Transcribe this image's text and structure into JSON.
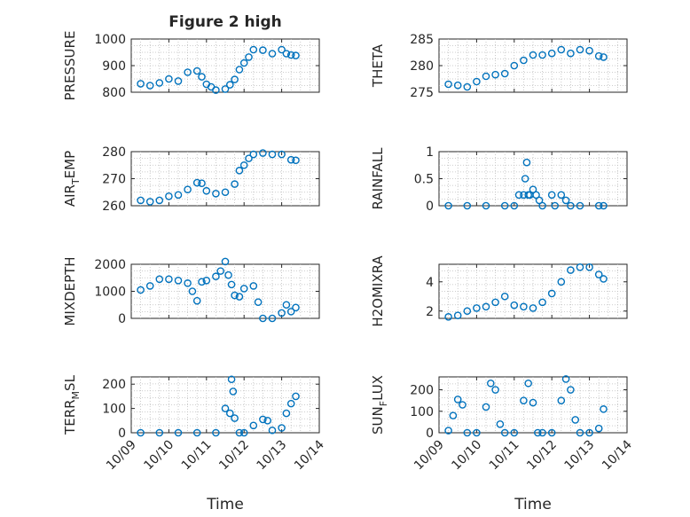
{
  "figure": {
    "title": "Figure 2 high",
    "time_label": "Time",
    "date_ticks": [
      "10/09",
      "10/10",
      "10/11",
      "10/12",
      "10/13",
      "10/14"
    ]
  },
  "colors": {
    "marker": "#0072bd",
    "axes": "#262626",
    "grid": "#bdbdbd"
  },
  "chart_data": [
    {
      "type": "scatter",
      "ylabel": "PRESSURE",
      "ylabel_sub": "",
      "ylim": [
        800,
        1000
      ],
      "yticks": [
        800,
        900,
        1000
      ],
      "ytick_labels": [
        "800",
        "900",
        "1000"
      ],
      "x": [
        "2023-10-09 06:00",
        "2023-10-09 12:00",
        "2023-10-09 18:00",
        "2023-10-10 00:00",
        "2023-10-10 06:00",
        "2023-10-10 12:00",
        "2023-10-10 18:00",
        "2023-10-10 21:00",
        "2023-10-11 00:00",
        "2023-10-11 03:00",
        "2023-10-11 06:00",
        "2023-10-11 12:00",
        "2023-10-11 15:00",
        "2023-10-11 18:00",
        "2023-10-11 21:00",
        "2023-10-12 00:00",
        "2023-10-12 03:00",
        "2023-10-12 06:00",
        "2023-10-12 12:00",
        "2023-10-12 18:00",
        "2023-10-13 00:00",
        "2023-10-13 03:00",
        "2023-10-13 06:00",
        "2023-10-13 09:00"
      ],
      "y": [
        832,
        825,
        835,
        850,
        842,
        875,
        880,
        858,
        830,
        820,
        808,
        812,
        828,
        848,
        885,
        910,
        932,
        960,
        958,
        945,
        960,
        945,
        940,
        938
      ]
    },
    {
      "type": "scatter",
      "ylabel": "THETA",
      "ylabel_sub": "",
      "ylim": [
        275,
        285
      ],
      "yticks": [
        275,
        280,
        285
      ],
      "ytick_labels": [
        "275",
        "280",
        "285"
      ],
      "x": [
        "2023-10-09 06:00",
        "2023-10-09 12:00",
        "2023-10-09 18:00",
        "2023-10-10 00:00",
        "2023-10-10 06:00",
        "2023-10-10 12:00",
        "2023-10-10 18:00",
        "2023-10-11 00:00",
        "2023-10-11 06:00",
        "2023-10-11 12:00",
        "2023-10-11 18:00",
        "2023-10-12 00:00",
        "2023-10-12 06:00",
        "2023-10-12 12:00",
        "2023-10-12 18:00",
        "2023-10-13 00:00",
        "2023-10-13 06:00",
        "2023-10-13 09:00"
      ],
      "y": [
        276.5,
        276.3,
        276.0,
        277.0,
        278.0,
        278.3,
        278.5,
        280.0,
        281.0,
        282.0,
        282.0,
        282.3,
        283.0,
        282.3,
        283.0,
        282.8,
        281.8,
        281.6
      ]
    },
    {
      "type": "scatter",
      "ylabel": "AIR",
      "ylabel_sub": "T",
      "ylabel_rest": "EMP",
      "ylim": [
        260,
        280
      ],
      "yticks": [
        260,
        270,
        280
      ],
      "ytick_labels": [
        "260",
        "270",
        "280"
      ],
      "x": [
        "2023-10-09 06:00",
        "2023-10-09 12:00",
        "2023-10-09 18:00",
        "2023-10-10 00:00",
        "2023-10-10 06:00",
        "2023-10-10 12:00",
        "2023-10-10 18:00",
        "2023-10-10 21:00",
        "2023-10-11 00:00",
        "2023-10-11 06:00",
        "2023-10-11 12:00",
        "2023-10-11 18:00",
        "2023-10-11 21:00",
        "2023-10-12 00:00",
        "2023-10-12 03:00",
        "2023-10-12 06:00",
        "2023-10-12 12:00",
        "2023-10-12 18:00",
        "2023-10-13 00:00",
        "2023-10-13 06:00",
        "2023-10-13 09:00"
      ],
      "y": [
        262,
        261.5,
        262,
        263.5,
        264,
        266,
        268.5,
        268.3,
        265.5,
        264.5,
        265,
        268,
        273,
        275,
        277.5,
        279,
        279.5,
        279,
        279,
        277,
        276.8
      ]
    },
    {
      "type": "scatter",
      "ylabel": "RAINFALL",
      "ylabel_sub": "",
      "ylim": [
        0,
        1
      ],
      "yticks": [
        0,
        0.5,
        1
      ],
      "ytick_labels": [
        "0",
        "0.5",
        "1"
      ],
      "x": [
        "2023-10-09 06:00",
        "2023-10-09 18:00",
        "2023-10-10 06:00",
        "2023-10-10 18:00",
        "2023-10-11 00:00",
        "2023-10-11 03:00",
        "2023-10-11 06:00",
        "2023-10-11 07:00",
        "2023-10-11 08:00",
        "2023-10-11 09:00",
        "2023-10-11 10:00",
        "2023-10-11 12:00",
        "2023-10-11 14:00",
        "2023-10-11 16:00",
        "2023-10-11 18:00",
        "2023-10-12 00:00",
        "2023-10-12 02:00",
        "2023-10-12 06:00",
        "2023-10-12 09:00",
        "2023-10-12 12:00",
        "2023-10-12 18:00",
        "2023-10-13 06:00",
        "2023-10-13 09:00"
      ],
      "y": [
        0,
        0,
        0,
        0,
        0,
        0.2,
        0.2,
        0.5,
        0.8,
        0.2,
        0.2,
        0.3,
        0.2,
        0.1,
        0,
        0.2,
        0,
        0.2,
        0.1,
        0,
        0,
        0,
        0
      ]
    },
    {
      "type": "scatter",
      "ylabel": "MIXDEPTH",
      "ylabel_sub": "",
      "ylim": [
        0,
        2000
      ],
      "yticks": [
        0,
        1000,
        2000
      ],
      "ytick_labels": [
        "0",
        "1000",
        "2000"
      ],
      "x": [
        "2023-10-09 06:00",
        "2023-10-09 12:00",
        "2023-10-09 18:00",
        "2023-10-10 00:00",
        "2023-10-10 06:00",
        "2023-10-10 12:00",
        "2023-10-10 15:00",
        "2023-10-10 18:00",
        "2023-10-10 21:00",
        "2023-10-11 00:00",
        "2023-10-11 06:00",
        "2023-10-11 09:00",
        "2023-10-11 12:00",
        "2023-10-11 14:00",
        "2023-10-11 16:00",
        "2023-10-11 18:00",
        "2023-10-11 21:00",
        "2023-10-12 00:00",
        "2023-10-12 06:00",
        "2023-10-12 09:00",
        "2023-10-12 12:00",
        "2023-10-12 18:00",
        "2023-10-13 00:00",
        "2023-10-13 03:00",
        "2023-10-13 06:00",
        "2023-10-13 09:00"
      ],
      "y": [
        1050,
        1200,
        1450,
        1450,
        1400,
        1300,
        1000,
        650,
        1350,
        1400,
        1550,
        1750,
        2100,
        1600,
        1250,
        850,
        800,
        1100,
        1200,
        600,
        0,
        0,
        200,
        500,
        250,
        400
      ]
    },
    {
      "type": "scatter",
      "ylabel": "H2OMIXRA",
      "ylabel_sub": "",
      "ylim": [
        1.5,
        5.2
      ],
      "yticks": [
        2,
        4
      ],
      "ytick_labels": [
        "2",
        "4"
      ],
      "x": [
        "2023-10-09 06:00",
        "2023-10-09 12:00",
        "2023-10-09 18:00",
        "2023-10-10 00:00",
        "2023-10-10 06:00",
        "2023-10-10 12:00",
        "2023-10-10 18:00",
        "2023-10-11 00:00",
        "2023-10-11 06:00",
        "2023-10-11 12:00",
        "2023-10-11 18:00",
        "2023-10-12 00:00",
        "2023-10-12 06:00",
        "2023-10-12 12:00",
        "2023-10-12 18:00",
        "2023-10-13 00:00",
        "2023-10-13 06:00",
        "2023-10-13 09:00"
      ],
      "y": [
        1.6,
        1.7,
        2.0,
        2.2,
        2.3,
        2.6,
        3.0,
        2.4,
        2.3,
        2.2,
        2.6,
        3.2,
        4.0,
        4.8,
        5.0,
        5.0,
        4.5,
        4.2
      ]
    },
    {
      "type": "scatter",
      "ylabel": "TERR",
      "ylabel_sub": "M",
      "ylabel_rest": "SL",
      "ylim": [
        0,
        230
      ],
      "yticks": [
        0,
        100,
        200
      ],
      "ytick_labels": [
        "0",
        "100",
        "200"
      ],
      "x": [
        "2023-10-09 06:00",
        "2023-10-09 18:00",
        "2023-10-10 06:00",
        "2023-10-10 18:00",
        "2023-10-11 06:00",
        "2023-10-11 12:00",
        "2023-10-11 15:00",
        "2023-10-11 16:00",
        "2023-10-11 17:00",
        "2023-10-11 18:00",
        "2023-10-11 21:00",
        "2023-10-12 00:00",
        "2023-10-12 06:00",
        "2023-10-12 12:00",
        "2023-10-12 15:00",
        "2023-10-12 18:00",
        "2023-10-13 00:00",
        "2023-10-13 03:00",
        "2023-10-13 06:00",
        "2023-10-13 09:00"
      ],
      "y": [
        0,
        0,
        0,
        0,
        0,
        100,
        80,
        220,
        170,
        60,
        0,
        0,
        30,
        55,
        50,
        10,
        20,
        80,
        120,
        150
      ]
    },
    {
      "type": "scatter",
      "ylabel": "SUN",
      "ylabel_sub": "F",
      "ylabel_rest": "LUX",
      "ylim": [
        0,
        260
      ],
      "yticks": [
        0,
        100,
        200
      ],
      "ytick_labels": [
        "0",
        "100",
        "200"
      ],
      "x": [
        "2023-10-09 06:00",
        "2023-10-09 09:00",
        "2023-10-09 12:00",
        "2023-10-09 15:00",
        "2023-10-09 18:00",
        "2023-10-10 00:00",
        "2023-10-10 06:00",
        "2023-10-10 09:00",
        "2023-10-10 12:00",
        "2023-10-10 15:00",
        "2023-10-10 18:00",
        "2023-10-11 00:00",
        "2023-10-11 06:00",
        "2023-10-11 09:00",
        "2023-10-11 12:00",
        "2023-10-11 15:00",
        "2023-10-11 18:00",
        "2023-10-12 00:00",
        "2023-10-12 06:00",
        "2023-10-12 09:00",
        "2023-10-12 12:00",
        "2023-10-12 15:00",
        "2023-10-12 18:00",
        "2023-10-13 00:00",
        "2023-10-13 06:00",
        "2023-10-13 09:00"
      ],
      "y": [
        10,
        80,
        155,
        130,
        0,
        0,
        120,
        230,
        200,
        40,
        0,
        0,
        150,
        230,
        140,
        0,
        0,
        0,
        150,
        250,
        200,
        60,
        0,
        0,
        20,
        110
      ]
    }
  ]
}
